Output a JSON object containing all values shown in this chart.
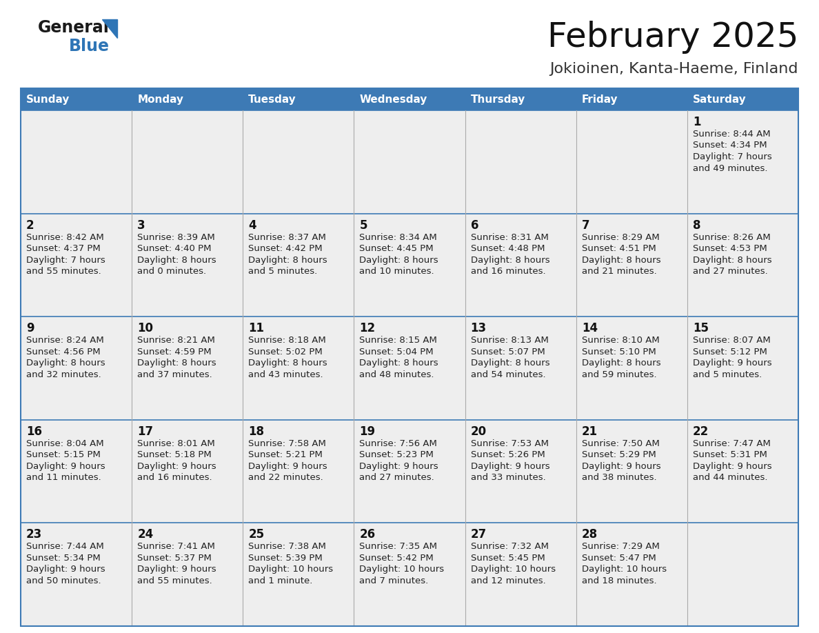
{
  "title": "February 2025",
  "subtitle": "Jokioinen, Kanta-Haeme, Finland",
  "days_of_week": [
    "Sunday",
    "Monday",
    "Tuesday",
    "Wednesday",
    "Thursday",
    "Friday",
    "Saturday"
  ],
  "header_bg": "#3D7AB5",
  "header_text": "#FFFFFF",
  "cell_bg": "#EEEEEE",
  "border_color": "#3D7AB5",
  "grid_color": "#CCCCCC",
  "text_color": "#222222",
  "logo_black": "#1a1a1a",
  "logo_blue": "#2E75B6",
  "calendar_data": [
    [
      {
        "day": "",
        "info": ""
      },
      {
        "day": "",
        "info": ""
      },
      {
        "day": "",
        "info": ""
      },
      {
        "day": "",
        "info": ""
      },
      {
        "day": "",
        "info": ""
      },
      {
        "day": "",
        "info": ""
      },
      {
        "day": "1",
        "info": "Sunrise: 8:44 AM\nSunset: 4:34 PM\nDaylight: 7 hours\nand 49 minutes."
      }
    ],
    [
      {
        "day": "2",
        "info": "Sunrise: 8:42 AM\nSunset: 4:37 PM\nDaylight: 7 hours\nand 55 minutes."
      },
      {
        "day": "3",
        "info": "Sunrise: 8:39 AM\nSunset: 4:40 PM\nDaylight: 8 hours\nand 0 minutes."
      },
      {
        "day": "4",
        "info": "Sunrise: 8:37 AM\nSunset: 4:42 PM\nDaylight: 8 hours\nand 5 minutes."
      },
      {
        "day": "5",
        "info": "Sunrise: 8:34 AM\nSunset: 4:45 PM\nDaylight: 8 hours\nand 10 minutes."
      },
      {
        "day": "6",
        "info": "Sunrise: 8:31 AM\nSunset: 4:48 PM\nDaylight: 8 hours\nand 16 minutes."
      },
      {
        "day": "7",
        "info": "Sunrise: 8:29 AM\nSunset: 4:51 PM\nDaylight: 8 hours\nand 21 minutes."
      },
      {
        "day": "8",
        "info": "Sunrise: 8:26 AM\nSunset: 4:53 PM\nDaylight: 8 hours\nand 27 minutes."
      }
    ],
    [
      {
        "day": "9",
        "info": "Sunrise: 8:24 AM\nSunset: 4:56 PM\nDaylight: 8 hours\nand 32 minutes."
      },
      {
        "day": "10",
        "info": "Sunrise: 8:21 AM\nSunset: 4:59 PM\nDaylight: 8 hours\nand 37 minutes."
      },
      {
        "day": "11",
        "info": "Sunrise: 8:18 AM\nSunset: 5:02 PM\nDaylight: 8 hours\nand 43 minutes."
      },
      {
        "day": "12",
        "info": "Sunrise: 8:15 AM\nSunset: 5:04 PM\nDaylight: 8 hours\nand 48 minutes."
      },
      {
        "day": "13",
        "info": "Sunrise: 8:13 AM\nSunset: 5:07 PM\nDaylight: 8 hours\nand 54 minutes."
      },
      {
        "day": "14",
        "info": "Sunrise: 8:10 AM\nSunset: 5:10 PM\nDaylight: 8 hours\nand 59 minutes."
      },
      {
        "day": "15",
        "info": "Sunrise: 8:07 AM\nSunset: 5:12 PM\nDaylight: 9 hours\nand 5 minutes."
      }
    ],
    [
      {
        "day": "16",
        "info": "Sunrise: 8:04 AM\nSunset: 5:15 PM\nDaylight: 9 hours\nand 11 minutes."
      },
      {
        "day": "17",
        "info": "Sunrise: 8:01 AM\nSunset: 5:18 PM\nDaylight: 9 hours\nand 16 minutes."
      },
      {
        "day": "18",
        "info": "Sunrise: 7:58 AM\nSunset: 5:21 PM\nDaylight: 9 hours\nand 22 minutes."
      },
      {
        "day": "19",
        "info": "Sunrise: 7:56 AM\nSunset: 5:23 PM\nDaylight: 9 hours\nand 27 minutes."
      },
      {
        "day": "20",
        "info": "Sunrise: 7:53 AM\nSunset: 5:26 PM\nDaylight: 9 hours\nand 33 minutes."
      },
      {
        "day": "21",
        "info": "Sunrise: 7:50 AM\nSunset: 5:29 PM\nDaylight: 9 hours\nand 38 minutes."
      },
      {
        "day": "22",
        "info": "Sunrise: 7:47 AM\nSunset: 5:31 PM\nDaylight: 9 hours\nand 44 minutes."
      }
    ],
    [
      {
        "day": "23",
        "info": "Sunrise: 7:44 AM\nSunset: 5:34 PM\nDaylight: 9 hours\nand 50 minutes."
      },
      {
        "day": "24",
        "info": "Sunrise: 7:41 AM\nSunset: 5:37 PM\nDaylight: 9 hours\nand 55 minutes."
      },
      {
        "day": "25",
        "info": "Sunrise: 7:38 AM\nSunset: 5:39 PM\nDaylight: 10 hours\nand 1 minute."
      },
      {
        "day": "26",
        "info": "Sunrise: 7:35 AM\nSunset: 5:42 PM\nDaylight: 10 hours\nand 7 minutes."
      },
      {
        "day": "27",
        "info": "Sunrise: 7:32 AM\nSunset: 5:45 PM\nDaylight: 10 hours\nand 12 minutes."
      },
      {
        "day": "28",
        "info": "Sunrise: 7:29 AM\nSunset: 5:47 PM\nDaylight: 10 hours\nand 18 minutes."
      },
      {
        "day": "",
        "info": ""
      }
    ]
  ]
}
